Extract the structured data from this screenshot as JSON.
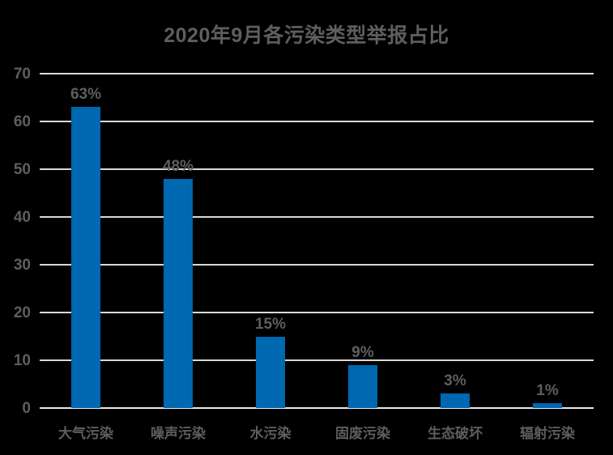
{
  "title": "2020年9月各污染类型举报占比",
  "colors": {
    "background": "#000000",
    "bar": "#0067b1",
    "text": "#5e5e5e",
    "gridline": "#d9d9d9",
    "axis_line": "#e8e8e8"
  },
  "chart_data": {
    "type": "bar",
    "title": "2020年9月各污染类型举报占比",
    "categories": [
      "大气污染",
      "噪声污染",
      "水污染",
      "固废污染",
      "生态破坏",
      "辐射污染"
    ],
    "values": [
      63,
      48,
      15,
      9,
      3,
      1
    ],
    "data_labels": [
      "63%",
      "48%",
      "15%",
      "9%",
      "3%",
      "1%"
    ],
    "xlabel": "",
    "ylabel": "",
    "ylim": [
      0,
      70
    ],
    "yticks": [
      0,
      10,
      20,
      30,
      40,
      50,
      60,
      70
    ],
    "grid": true,
    "legend": false,
    "background": "dark"
  }
}
